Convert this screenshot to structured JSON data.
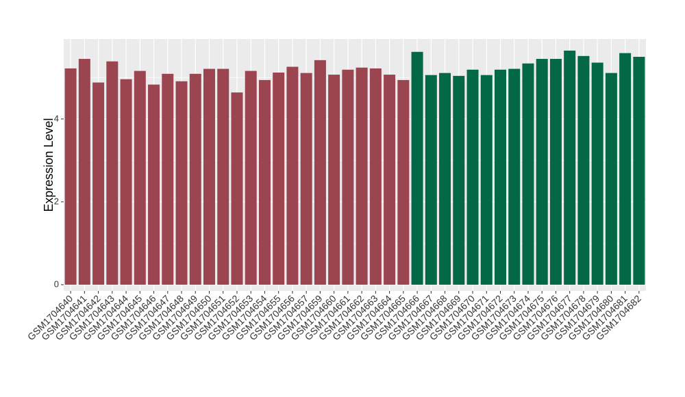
{
  "chart_data": {
    "type": "bar",
    "y_label": "Expression Level",
    "categories": [
      "GSM1704640",
      "GSM1704641",
      "GSM1704642",
      "GSM1704643",
      "GSM1704644",
      "GSM1704645",
      "GSM1704646",
      "GSM1704647",
      "GSM1704648",
      "GSM1704649",
      "GSM1704650",
      "GSM1704651",
      "GSM1704652",
      "GSM1704653",
      "GSM1704654",
      "GSM1704655",
      "GSM1704656",
      "GSM1704657",
      "GSM1704659",
      "GSM1704660",
      "GSM1704661",
      "GSM1704662",
      "GSM1704663",
      "GSM1704664",
      "GSM1704665",
      "GSM1704666",
      "GSM1704667",
      "GSM1704668",
      "GSM1704669",
      "GSM1704670",
      "GSM1704671",
      "GSM1704672",
      "GSM1704673",
      "GSM1704674",
      "GSM1704675",
      "GSM1704676",
      "GSM1704677",
      "GSM1704678",
      "GSM1704679",
      "GSM1704680",
      "GSM1704681",
      "GSM1704682"
    ],
    "values": [
      5.22,
      5.45,
      4.88,
      5.39,
      4.96,
      5.16,
      4.83,
      5.09,
      4.91,
      5.09,
      5.21,
      5.21,
      4.64,
      5.16,
      4.94,
      5.12,
      5.26,
      5.11,
      5.42,
      5.07,
      5.19,
      5.24,
      5.22,
      5.07,
      4.94,
      5.62,
      5.06,
      5.11,
      5.04,
      5.19,
      5.06,
      5.19,
      5.21,
      5.34,
      5.45,
      5.45,
      5.65,
      5.52,
      5.36,
      5.11,
      5.59,
      5.5
    ],
    "colors": [
      "#9b4551",
      "#9b4551",
      "#9b4551",
      "#9b4551",
      "#9b4551",
      "#9b4551",
      "#9b4551",
      "#9b4551",
      "#9b4551",
      "#9b4551",
      "#9b4551",
      "#9b4551",
      "#9b4551",
      "#9b4551",
      "#9b4551",
      "#9b4551",
      "#9b4551",
      "#9b4551",
      "#9b4551",
      "#9b4551",
      "#9b4551",
      "#9b4551",
      "#9b4551",
      "#9b4551",
      "#9b4551",
      "#036846",
      "#036846",
      "#036846",
      "#036846",
      "#036846",
      "#036846",
      "#036846",
      "#036846",
      "#036846",
      "#036846",
      "#036846",
      "#036846",
      "#036846",
      "#036846",
      "#036846",
      "#036846",
      "#036846"
    ],
    "ylim": [
      -0.15,
      5.93
    ],
    "yticks": [
      0,
      2,
      4
    ],
    "grid": true
  }
}
